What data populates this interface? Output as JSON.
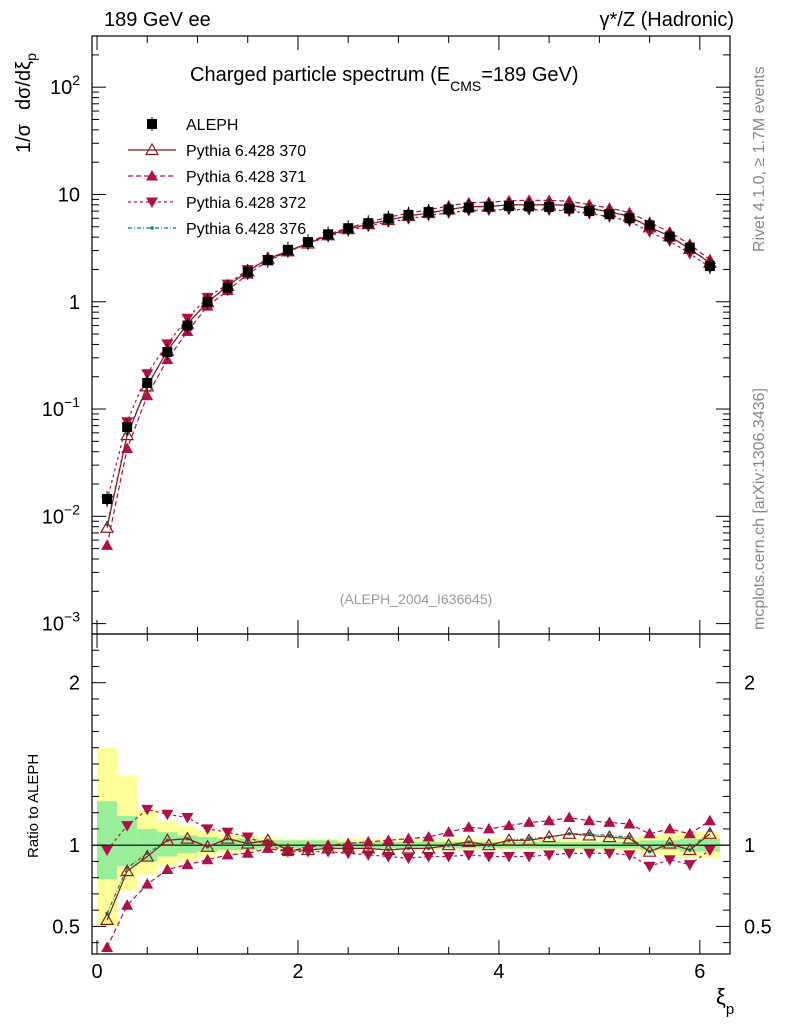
{
  "header": {
    "left": "189 GeV ee",
    "right": "γ*/Z (Hadronic)"
  },
  "side_text": {
    "top": "Rivet 4.1.0, ≥ 1.7M events",
    "bottom": "mcplots.cern.ch [arXiv:1306.3436]"
  },
  "chart_data": {
    "type": "line",
    "title": "Charged particle spectrum (E_CMS=189 GeV)",
    "title_parts": {
      "main": "Charged particle spectrum (E",
      "sub": "CMS",
      "tail": "=189 GeV)"
    },
    "analysis_tag": "(ALEPH_2004_I636645)",
    "xlabel": "ξp",
    "xlabel_parts": {
      "main": "ξ",
      "sub": "p"
    },
    "ylabel_top": "1/σ  dσ/dξp",
    "ylabel_top_parts": {
      "a": "1/σ",
      "b": "dσ/dξ",
      "sub": "p"
    },
    "ylabel_bottom": "Ratio to ALEPH",
    "xlim": [
      -0.05,
      6.3
    ],
    "ylim_top": [
      0.0008,
      300
    ],
    "ylim_bottom": [
      0.33,
      2.3
    ],
    "x_ticks": [
      "0",
      "2",
      "4",
      "6"
    ],
    "x_tick_values": [
      0,
      2,
      4,
      6
    ],
    "y_ticks_top": [
      {
        "value": 0.001,
        "base": "10",
        "exp": "−3"
      },
      {
        "value": 0.01,
        "base": "10",
        "exp": "−2"
      },
      {
        "value": 0.1,
        "base": "10",
        "exp": "−1"
      },
      {
        "value": 1,
        "base": "1",
        "exp": ""
      },
      {
        "value": 10,
        "base": "10",
        "exp": ""
      },
      {
        "value": 100,
        "base": "10",
        "exp": "2"
      }
    ],
    "y_ticks_bottom": [
      "0.5",
      "1",
      "2"
    ],
    "y_tick_values_bottom": [
      0.5,
      1,
      2
    ],
    "x": [
      0.1,
      0.3,
      0.5,
      0.7,
      0.9,
      1.1,
      1.3,
      1.5,
      1.7,
      1.9,
      2.1,
      2.3,
      2.5,
      2.7,
      2.9,
      3.1,
      3.3,
      3.5,
      3.7,
      3.9,
      4.1,
      4.3,
      4.5,
      4.7,
      4.9,
      5.1,
      5.3,
      5.5,
      5.7,
      5.9,
      6.1
    ],
    "data": {
      "name": "ALEPH",
      "values": [
        0.0145,
        0.068,
        0.175,
        0.34,
        0.6,
        1.0,
        1.35,
        1.9,
        2.45,
        3.05,
        3.6,
        4.25,
        4.85,
        5.4,
        5.95,
        6.45,
        6.85,
        7.25,
        7.55,
        7.7,
        7.8,
        7.75,
        7.65,
        7.4,
        7.0,
        6.55,
        6.0,
        5.15,
        4.05,
        3.2,
        2.15
      ]
    },
    "band_edges": [
      0.0,
      0.2,
      0.4,
      0.6,
      0.8,
      1.0,
      1.2,
      1.4,
      1.6,
      1.8,
      2.0,
      2.2,
      2.4,
      2.6,
      2.8,
      3.0,
      3.2,
      3.4,
      3.6,
      3.8,
      4.0,
      4.2,
      4.4,
      4.6,
      4.8,
      5.0,
      5.2,
      5.4,
      5.6,
      5.8,
      6.0,
      6.2
    ],
    "band_stat": [
      [
        0.79,
        1.27
      ],
      [
        0.87,
        1.18
      ],
      [
        0.9,
        1.1
      ],
      [
        0.93,
        1.08
      ],
      [
        0.95,
        1.06
      ],
      [
        0.96,
        1.05
      ],
      [
        0.97,
        1.04
      ],
      [
        0.97,
        1.04
      ],
      [
        0.98,
        1.03
      ],
      [
        0.98,
        1.03
      ],
      [
        0.98,
        1.03
      ],
      [
        0.98,
        1.03
      ],
      [
        0.98,
        1.02
      ],
      [
        0.98,
        1.02
      ],
      [
        0.98,
        1.02
      ],
      [
        0.98,
        1.02
      ],
      [
        0.98,
        1.02
      ],
      [
        0.98,
        1.02
      ],
      [
        0.98,
        1.02
      ],
      [
        0.98,
        1.02
      ],
      [
        0.98,
        1.02
      ],
      [
        0.98,
        1.02
      ],
      [
        0.98,
        1.02
      ],
      [
        0.98,
        1.02
      ],
      [
        0.98,
        1.02
      ],
      [
        0.98,
        1.02
      ],
      [
        0.98,
        1.02
      ],
      [
        0.97,
        1.03
      ],
      [
        0.97,
        1.03
      ],
      [
        0.96,
        1.04
      ],
      [
        0.96,
        1.04
      ]
    ],
    "band_total": [
      [
        0.5,
        1.6
      ],
      [
        0.72,
        1.43
      ],
      [
        0.82,
        1.22
      ],
      [
        0.87,
        1.15
      ],
      [
        0.9,
        1.12
      ],
      [
        0.93,
        1.09
      ],
      [
        0.95,
        1.07
      ],
      [
        0.96,
        1.06
      ],
      [
        0.97,
        1.05
      ],
      [
        0.97,
        1.04
      ],
      [
        0.97,
        1.04
      ],
      [
        0.97,
        1.04
      ],
      [
        0.97,
        1.04
      ],
      [
        0.97,
        1.04
      ],
      [
        0.97,
        1.04
      ],
      [
        0.97,
        1.04
      ],
      [
        0.97,
        1.04
      ],
      [
        0.97,
        1.04
      ],
      [
        0.97,
        1.04
      ],
      [
        0.97,
        1.04
      ],
      [
        0.97,
        1.04
      ],
      [
        0.97,
        1.04
      ],
      [
        0.97,
        1.04
      ],
      [
        0.97,
        1.04
      ],
      [
        0.97,
        1.04
      ],
      [
        0.97,
        1.04
      ],
      [
        0.96,
        1.05
      ],
      [
        0.95,
        1.06
      ],
      [
        0.94,
        1.07
      ],
      [
        0.92,
        1.08
      ],
      [
        0.92,
        1.08
      ]
    ],
    "series": [
      {
        "name": "Pythia 6.428 370",
        "color": "#8b1a1a",
        "dash": "",
        "marker": "triangle-open",
        "ratio": [
          0.54,
          0.84,
          0.93,
          1.03,
          1.04,
          0.99,
          1.04,
          1.01,
          1.03,
          0.97,
          0.97,
          0.98,
          0.98,
          0.98,
          0.97,
          0.98,
          0.98,
          1.0,
          1.02,
          1.0,
          1.03,
          1.03,
          1.05,
          1.07,
          1.06,
          1.05,
          1.04,
          0.96,
          1.01,
          0.97,
          1.07
        ]
      },
      {
        "name": "Pythia 6.428 371",
        "color": "#b0104a",
        "dash": "5,3",
        "marker": "triangle-up",
        "ratio": [
          0.37,
          0.63,
          0.76,
          0.85,
          0.88,
          0.91,
          0.94,
          0.95,
          0.98,
          0.96,
          0.99,
          1.0,
          1.01,
          1.02,
          1.03,
          1.04,
          1.05,
          1.08,
          1.11,
          1.1,
          1.12,
          1.14,
          1.15,
          1.17,
          1.15,
          1.14,
          1.13,
          1.07,
          1.1,
          1.07,
          1.15
        ]
      },
      {
        "name": "Pythia 6.428 372",
        "color": "#b0104a",
        "dash": "3,3",
        "marker": "triangle-down",
        "ratio": [
          0.97,
          1.12,
          1.22,
          1.19,
          1.17,
          1.1,
          1.08,
          1.05,
          1.0,
          0.96,
          0.96,
          0.96,
          0.95,
          0.94,
          0.93,
          0.92,
          0.93,
          0.93,
          0.94,
          0.93,
          0.93,
          0.93,
          0.94,
          0.95,
          0.95,
          0.95,
          0.94,
          0.87,
          0.91,
          0.88,
          0.97
        ]
      },
      {
        "name": "Pythia 6.428 376",
        "color": "#008b6b",
        "dash": "4,2,1,2",
        "marker": "dot",
        "ratio": [
          0.58,
          0.86,
          0.95,
          1.03,
          1.04,
          0.99,
          1.04,
          1.01,
          1.03,
          0.97,
          0.97,
          0.98,
          0.98,
          0.98,
          0.97,
          0.98,
          0.98,
          1.0,
          1.02,
          1.0,
          1.03,
          1.04,
          1.05,
          1.07,
          1.07,
          1.06,
          1.05,
          0.96,
          1.01,
          0.97,
          1.09
        ]
      }
    ]
  }
}
